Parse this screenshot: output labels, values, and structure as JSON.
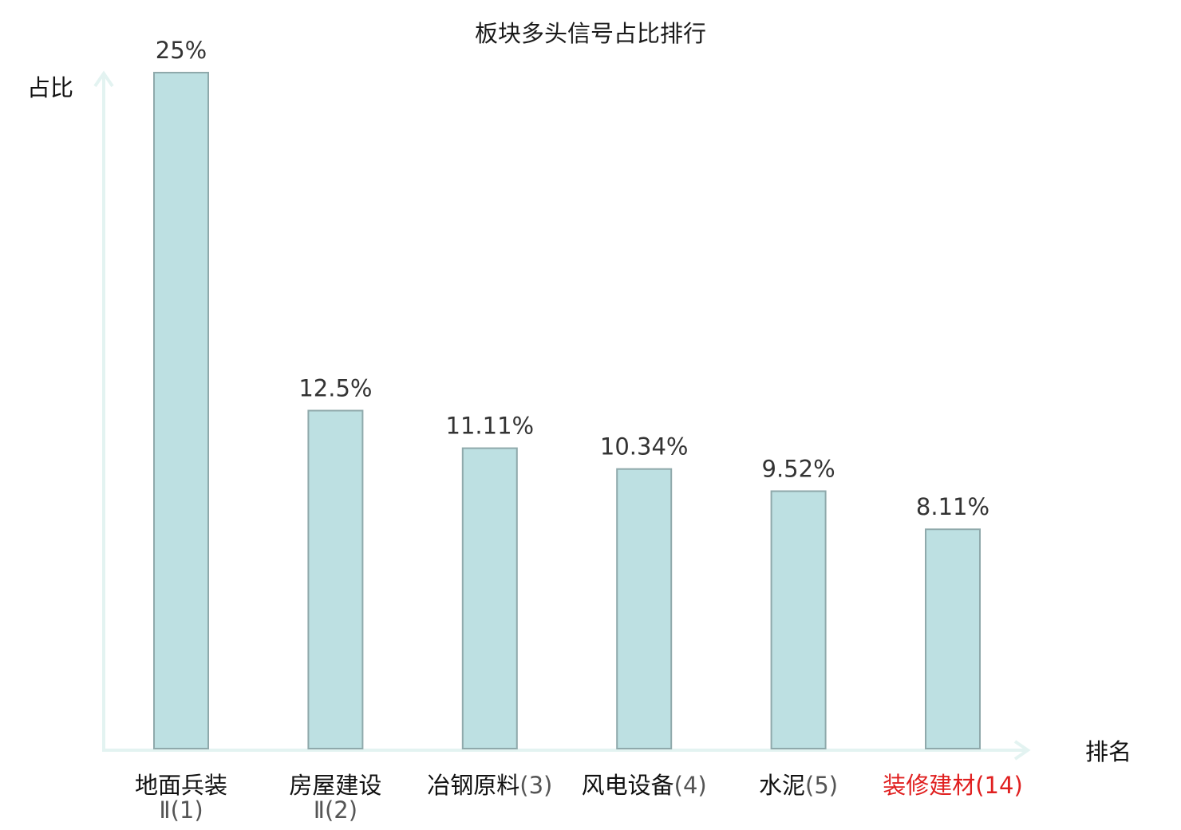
{
  "chart_data": {
    "type": "bar",
    "title": "板块多头信号占比排行",
    "xlabel": "排名",
    "ylabel": "占比",
    "categories": [
      {
        "name": "地面兵装Ⅱ",
        "rank": "(1)",
        "highlight": false
      },
      {
        "name": "房屋建设Ⅱ",
        "rank": "(2)",
        "highlight": false
      },
      {
        "name": "冶钢原料",
        "rank": "(3)",
        "highlight": false
      },
      {
        "name": "风电设备",
        "rank": "(4)",
        "highlight": false
      },
      {
        "name": "水泥",
        "rank": "(5)",
        "highlight": false
      },
      {
        "name": "装修建材",
        "rank": "(14)",
        "highlight": true
      }
    ],
    "values": [
      25,
      12.5,
      11.11,
      10.34,
      9.52,
      8.11
    ],
    "value_labels": [
      "25%",
      "12.5%",
      "11.11%",
      "10.34%",
      "9.52%",
      "8.11%"
    ],
    "ylim": [
      0,
      25
    ],
    "grid": false,
    "colors": {
      "bar_fill": "#bde0e2",
      "bar_stroke": "#8fa9ab",
      "axis": "#e3f3f1",
      "highlight_text": "#e02020"
    }
  }
}
